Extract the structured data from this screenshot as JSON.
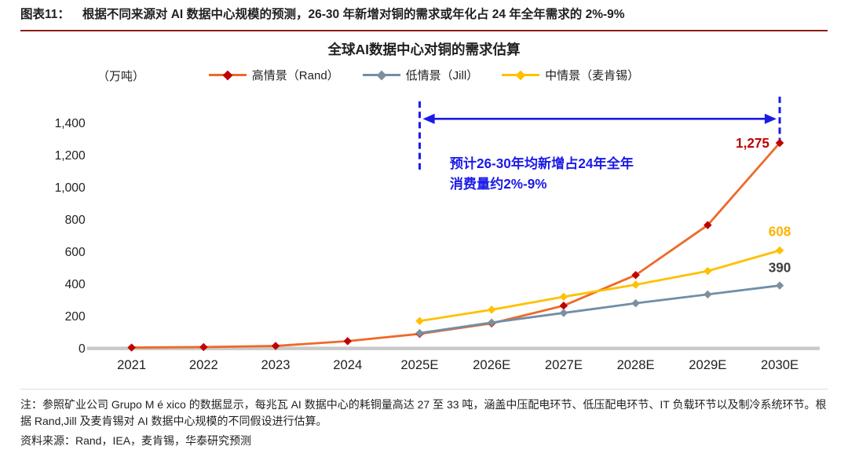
{
  "header": {
    "label": "图表11：",
    "title": "根据不同来源对 AI 数据中心规模的预测，26-30 年新增对铜的需求或年化占 24 年全年需求的 2%-9%"
  },
  "chart_data": {
    "type": "line",
    "title": "全球AI数据中心对铜的需求估算",
    "ylabel": "（万吨）",
    "categories": [
      "2021",
      "2022",
      "2023",
      "2024",
      "2025E",
      "2026E",
      "2027E",
      "2028E",
      "2029E",
      "2030E"
    ],
    "ylim": [
      0,
      1400
    ],
    "ytick_labels": [
      "0",
      "200",
      "400",
      "600",
      "800",
      "1,000",
      "1,200",
      "1,400"
    ],
    "grid": false,
    "legend_position": "top-center",
    "series": [
      {
        "name": "高情景（Rand）",
        "line_color": "#ED6A2A",
        "marker_color": "#C00000",
        "values": [
          5,
          8,
          15,
          45,
          90,
          155,
          265,
          455,
          765,
          1275
        ],
        "end_label": "1,275",
        "end_label_color": "#C00000"
      },
      {
        "name": "低情景（Jill）",
        "line_color": "#6F8FA8",
        "marker_color": "#7E8F9C",
        "values": [
          null,
          null,
          null,
          null,
          95,
          160,
          220,
          280,
          335,
          390
        ],
        "end_label": "390",
        "end_label_color": "#3F3F3F"
      },
      {
        "name": "中情景（麦肯锡）",
        "line_color": "#FFC000",
        "marker_color": "#FFC000",
        "values": [
          null,
          null,
          null,
          null,
          170,
          240,
          320,
          395,
          480,
          608
        ],
        "end_label": "608",
        "end_label_color": "#FFB300"
      }
    ],
    "annotation": {
      "text_lines": [
        "预计26-30年均新增占24年全年",
        "消费量约2%-9%"
      ],
      "color": "#1B1BE8",
      "span_from_category": "2025E",
      "span_to_category": "2030E"
    }
  },
  "footer": {
    "note": "注：参照矿业公司 Grupo M é xico 的数据显示，每兆瓦 AI 数据中心的耗铜量高达 27 至 33 吨，涵盖中压配电环节、低压配电环节、IT 负载环节以及制冷系统环节。根据 Rand,Jill 及麦肯锡对 AI 数据中心规模的不同假设进行估算。",
    "source": "资料来源：Rand，IEA，麦肯锡，华泰研究预测"
  },
  "colors": {
    "header_rule": "#8C1D18",
    "axis_baseline": "#C9C9C9",
    "annotation_blue": "#1B1BE8"
  }
}
